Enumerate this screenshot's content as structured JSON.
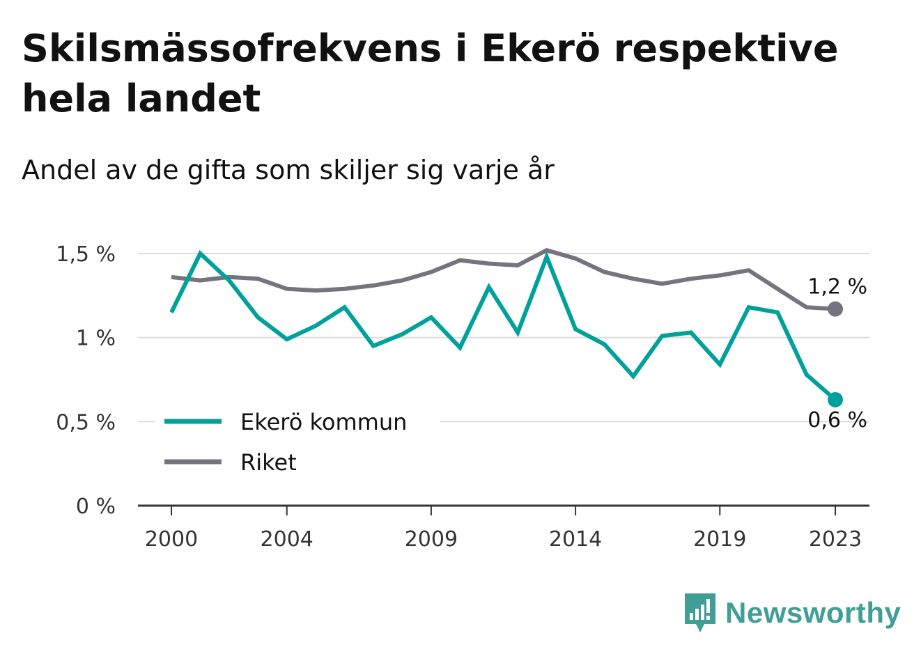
{
  "header": {
    "title": "Skilsmässofrekvens i Ekerö respektive hela landet",
    "subtitle": "Andel av de gifta som skiljer sig varje år"
  },
  "brand": {
    "name": "Newsworthy",
    "color": "#3f9e96",
    "icon": "bar-chart-speech-bubble-icon"
  },
  "chart_data": {
    "type": "line",
    "title": "Skilsmässofrekvens i Ekerö respektive hela landet",
    "subtitle": "Andel av de gifta som skiljer sig varje år",
    "xlabel": "",
    "ylabel": "",
    "x": [
      2000,
      2001,
      2002,
      2003,
      2004,
      2005,
      2006,
      2007,
      2008,
      2009,
      2010,
      2011,
      2012,
      2013,
      2014,
      2015,
      2016,
      2017,
      2018,
      2019,
      2020,
      2021,
      2022,
      2023
    ],
    "x_ticks": [
      2000,
      2004,
      2009,
      2014,
      2019,
      2023
    ],
    "y_ticks": [
      0,
      0.5,
      1,
      1.5
    ],
    "y_tick_labels": [
      "0 %",
      "0,5 %",
      "1 %",
      "1,5 %"
    ],
    "ylim": [
      0,
      1.5
    ],
    "grid": "horizontal",
    "legend_position": "bottom-left",
    "series": [
      {
        "name": "Ekerö kommun",
        "color": "#00a19a",
        "end_label": "0,6 %",
        "values": [
          1.15,
          1.5,
          1.34,
          1.12,
          0.99,
          1.07,
          1.18,
          0.95,
          1.02,
          1.12,
          0.94,
          1.3,
          1.03,
          1.48,
          1.05,
          0.96,
          0.77,
          1.01,
          1.03,
          0.84,
          1.18,
          1.15,
          0.78,
          0.63
        ]
      },
      {
        "name": "Riket",
        "color": "#75737d",
        "end_label": "1,2 %",
        "values": [
          1.36,
          1.34,
          1.36,
          1.35,
          1.29,
          1.28,
          1.29,
          1.31,
          1.34,
          1.39,
          1.46,
          1.44,
          1.43,
          1.52,
          1.47,
          1.39,
          1.35,
          1.32,
          1.35,
          1.37,
          1.4,
          1.29,
          1.18,
          1.17
        ]
      }
    ]
  }
}
